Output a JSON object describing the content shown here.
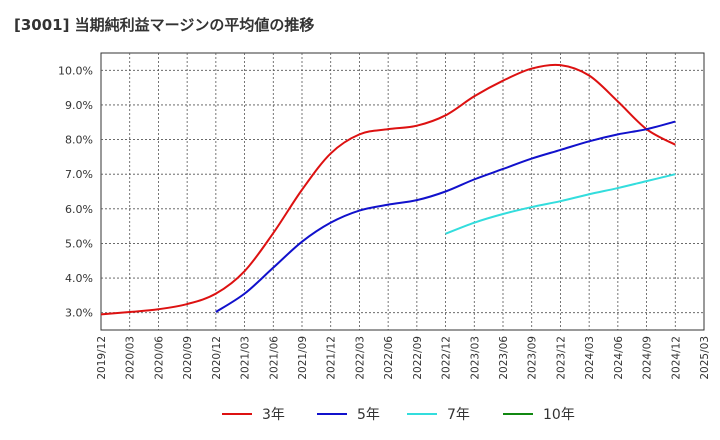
{
  "chart_data": {
    "type": "line",
    "title": "[3001]  当期純利益マージンの平均値の推移",
    "xlabel": "",
    "ylabel": "",
    "x_ticks": [
      "2019/12",
      "2020/03",
      "2020/06",
      "2020/09",
      "2020/12",
      "2021/03",
      "2021/06",
      "2021/09",
      "2021/12",
      "2022/03",
      "2022/06",
      "2022/09",
      "2022/12",
      "2023/03",
      "2023/06",
      "2023/09",
      "2023/12",
      "2024/03",
      "2024/06",
      "2024/09",
      "2024/12",
      "2025/03"
    ],
    "y_ticks": [
      "3.0%",
      "4.0%",
      "5.0%",
      "6.0%",
      "7.0%",
      "8.0%",
      "9.0%",
      "10.0%"
    ],
    "ylim": [
      2.5,
      10.5
    ],
    "grid": true,
    "legend_position": "bottom",
    "series": [
      {
        "name": "3年",
        "color": "#dd1111",
        "points": [
          [
            "2019/12",
            2.95
          ],
          [
            "2020/03",
            3.02
          ],
          [
            "2020/06",
            3.1
          ],
          [
            "2020/09",
            3.25
          ],
          [
            "2020/12",
            3.55
          ],
          [
            "2021/03",
            4.2
          ],
          [
            "2021/06",
            5.3
          ],
          [
            "2021/09",
            6.55
          ],
          [
            "2021/12",
            7.6
          ],
          [
            "2022/03",
            8.15
          ],
          [
            "2022/06",
            8.3
          ],
          [
            "2022/09",
            8.4
          ],
          [
            "2022/12",
            8.7
          ],
          [
            "2023/03",
            9.25
          ],
          [
            "2023/06",
            9.7
          ],
          [
            "2023/09",
            10.05
          ],
          [
            "2023/12",
            10.15
          ],
          [
            "2024/03",
            9.85
          ],
          [
            "2024/06",
            9.1
          ],
          [
            "2024/09",
            8.3
          ],
          [
            "2024/12",
            7.85
          ]
        ]
      },
      {
        "name": "5年",
        "color": "#1111cc",
        "points": [
          [
            "2020/12",
            3.02
          ],
          [
            "2021/03",
            3.55
          ],
          [
            "2021/06",
            4.3
          ],
          [
            "2021/09",
            5.05
          ],
          [
            "2021/12",
            5.6
          ],
          [
            "2022/03",
            5.95
          ],
          [
            "2022/06",
            6.12
          ],
          [
            "2022/09",
            6.25
          ],
          [
            "2022/12",
            6.5
          ],
          [
            "2023/03",
            6.85
          ],
          [
            "2023/06",
            7.15
          ],
          [
            "2023/09",
            7.45
          ],
          [
            "2023/12",
            7.7
          ],
          [
            "2024/03",
            7.95
          ],
          [
            "2024/06",
            8.15
          ],
          [
            "2024/09",
            8.3
          ],
          [
            "2024/12",
            8.52
          ]
        ]
      },
      {
        "name": "7年",
        "color": "#33dddd",
        "points": [
          [
            "2022/12",
            5.28
          ],
          [
            "2023/03",
            5.6
          ],
          [
            "2023/06",
            5.85
          ],
          [
            "2023/09",
            6.05
          ],
          [
            "2023/12",
            6.22
          ],
          [
            "2024/03",
            6.42
          ],
          [
            "2024/06",
            6.6
          ],
          [
            "2024/09",
            6.8
          ],
          [
            "2024/12",
            7.0
          ]
        ]
      },
      {
        "name": "10年",
        "color": "#118811",
        "points": []
      }
    ]
  }
}
